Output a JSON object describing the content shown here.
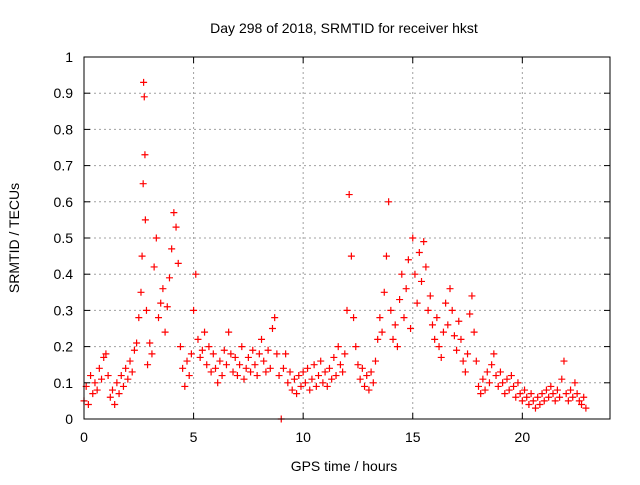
{
  "chart_data": {
    "type": "scatter",
    "title": "Day 298 of 2018, SRMTID for receiver hkst",
    "xlabel": "GPS time / hours",
    "ylabel": "SRMTID / TECUs",
    "xlim": [
      0,
      24
    ],
    "ylim": [
      0,
      1
    ],
    "xticks": [
      0,
      5,
      10,
      15,
      20
    ],
    "yticks": [
      0,
      0.1,
      0.2,
      0.3,
      0.4,
      0.5,
      0.6,
      0.7,
      0.8,
      0.9,
      1
    ],
    "xtick_labels": [
      "0",
      "5",
      "10",
      "15",
      "20"
    ],
    "ytick_labels": [
      "0",
      "0.1",
      "0.2",
      "0.3",
      "0.4",
      "0.5",
      "0.6",
      "0.7",
      "0.8",
      "0.9",
      "1"
    ],
    "grid": true,
    "marker": "+",
    "color": "#ff0000",
    "series": [
      {
        "name": "SRMTID",
        "points": [
          [
            0.0,
            0.05
          ],
          [
            0.1,
            0.09
          ],
          [
            0.2,
            0.04
          ],
          [
            0.3,
            0.12
          ],
          [
            0.4,
            0.07
          ],
          [
            0.5,
            0.1
          ],
          [
            0.6,
            0.08
          ],
          [
            0.7,
            0.14
          ],
          [
            0.8,
            0.11
          ],
          [
            0.9,
            0.17
          ],
          [
            1.0,
            0.18
          ],
          [
            1.1,
            0.12
          ],
          [
            1.2,
            0.06
          ],
          [
            1.3,
            0.08
          ],
          [
            1.4,
            0.04
          ],
          [
            1.5,
            0.1
          ],
          [
            1.6,
            0.07
          ],
          [
            1.7,
            0.12
          ],
          [
            1.8,
            0.09
          ],
          [
            1.9,
            0.14
          ],
          [
            2.0,
            0.11
          ],
          [
            2.1,
            0.16
          ],
          [
            2.2,
            0.13
          ],
          [
            2.3,
            0.19
          ],
          [
            2.4,
            0.21
          ],
          [
            2.5,
            0.28
          ],
          [
            2.6,
            0.35
          ],
          [
            2.65,
            0.45
          ],
          [
            2.7,
            0.65
          ],
          [
            2.72,
            0.93
          ],
          [
            2.75,
            0.89
          ],
          [
            2.78,
            0.73
          ],
          [
            2.8,
            0.55
          ],
          [
            2.85,
            0.3
          ],
          [
            2.9,
            0.15
          ],
          [
            3.0,
            0.21
          ],
          [
            3.1,
            0.18
          ],
          [
            3.2,
            0.42
          ],
          [
            3.3,
            0.5
          ],
          [
            3.4,
            0.28
          ],
          [
            3.5,
            0.32
          ],
          [
            3.6,
            0.36
          ],
          [
            3.7,
            0.24
          ],
          [
            3.8,
            0.31
          ],
          [
            3.9,
            0.39
          ],
          [
            4.0,
            0.47
          ],
          [
            4.1,
            0.57
          ],
          [
            4.2,
            0.53
          ],
          [
            4.3,
            0.43
          ],
          [
            4.4,
            0.2
          ],
          [
            4.5,
            0.14
          ],
          [
            4.6,
            0.09
          ],
          [
            4.7,
            0.16
          ],
          [
            4.8,
            0.12
          ],
          [
            4.9,
            0.18
          ],
          [
            5.0,
            0.3
          ],
          [
            5.1,
            0.4
          ],
          [
            5.2,
            0.22
          ],
          [
            5.3,
            0.17
          ],
          [
            5.4,
            0.19
          ],
          [
            5.5,
            0.24
          ],
          [
            5.6,
            0.15
          ],
          [
            5.7,
            0.2
          ],
          [
            5.8,
            0.13
          ],
          [
            5.9,
            0.18
          ],
          [
            6.0,
            0.14
          ],
          [
            6.1,
            0.1
          ],
          [
            6.2,
            0.16
          ],
          [
            6.3,
            0.12
          ],
          [
            6.4,
            0.19
          ],
          [
            6.5,
            0.15
          ],
          [
            6.6,
            0.24
          ],
          [
            6.7,
            0.18
          ],
          [
            6.8,
            0.13
          ],
          [
            6.9,
            0.17
          ],
          [
            7.0,
            0.12
          ],
          [
            7.1,
            0.15
          ],
          [
            7.2,
            0.2
          ],
          [
            7.3,
            0.11
          ],
          [
            7.4,
            0.14
          ],
          [
            7.5,
            0.17
          ],
          [
            7.6,
            0.13
          ],
          [
            7.7,
            0.19
          ],
          [
            7.8,
            0.15
          ],
          [
            7.9,
            0.12
          ],
          [
            8.0,
            0.18
          ],
          [
            8.1,
            0.22
          ],
          [
            8.2,
            0.16
          ],
          [
            8.3,
            0.13
          ],
          [
            8.4,
            0.19
          ],
          [
            8.5,
            0.14
          ],
          [
            8.6,
            0.25
          ],
          [
            8.7,
            0.28
          ],
          [
            8.8,
            0.18
          ],
          [
            8.9,
            0.12
          ],
          [
            9.0,
            0.0
          ],
          [
            9.1,
            0.14
          ],
          [
            9.2,
            0.18
          ],
          [
            9.3,
            0.1
          ],
          [
            9.4,
            0.13
          ],
          [
            9.5,
            0.08
          ],
          [
            9.6,
            0.11
          ],
          [
            9.7,
            0.07
          ],
          [
            9.8,
            0.12
          ],
          [
            9.9,
            0.09
          ],
          [
            10.0,
            0.13
          ],
          [
            10.1,
            0.1
          ],
          [
            10.2,
            0.14
          ],
          [
            10.3,
            0.08
          ],
          [
            10.4,
            0.11
          ],
          [
            10.5,
            0.15
          ],
          [
            10.6,
            0.09
          ],
          [
            10.7,
            0.12
          ],
          [
            10.8,
            0.16
          ],
          [
            10.9,
            0.1
          ],
          [
            11.0,
            0.13
          ],
          [
            11.1,
            0.09
          ],
          [
            11.2,
            0.14
          ],
          [
            11.3,
            0.11
          ],
          [
            11.4,
            0.17
          ],
          [
            11.5,
            0.12
          ],
          [
            11.6,
            0.2
          ],
          [
            11.7,
            0.15
          ],
          [
            11.8,
            0.13
          ],
          [
            11.9,
            0.18
          ],
          [
            12.0,
            0.3
          ],
          [
            12.1,
            0.62
          ],
          [
            12.2,
            0.45
          ],
          [
            12.3,
            0.28
          ],
          [
            12.4,
            0.2
          ],
          [
            12.5,
            0.15
          ],
          [
            12.6,
            0.11
          ],
          [
            12.7,
            0.14
          ],
          [
            12.8,
            0.09
          ],
          [
            12.9,
            0.12
          ],
          [
            13.0,
            0.08
          ],
          [
            13.1,
            0.13
          ],
          [
            13.2,
            0.1
          ],
          [
            13.3,
            0.16
          ],
          [
            13.4,
            0.22
          ],
          [
            13.5,
            0.28
          ],
          [
            13.6,
            0.24
          ],
          [
            13.7,
            0.35
          ],
          [
            13.8,
            0.45
          ],
          [
            13.9,
            0.6
          ],
          [
            14.0,
            0.3
          ],
          [
            14.1,
            0.22
          ],
          [
            14.2,
            0.26
          ],
          [
            14.3,
            0.2
          ],
          [
            14.4,
            0.33
          ],
          [
            14.5,
            0.4
          ],
          [
            14.6,
            0.28
          ],
          [
            14.7,
            0.36
          ],
          [
            14.8,
            0.44
          ],
          [
            14.9,
            0.25
          ],
          [
            15.0,
            0.5
          ],
          [
            15.1,
            0.4
          ],
          [
            15.2,
            0.32
          ],
          [
            15.3,
            0.46
          ],
          [
            15.4,
            0.38
          ],
          [
            15.5,
            0.49
          ],
          [
            15.6,
            0.42
          ],
          [
            15.7,
            0.3
          ],
          [
            15.8,
            0.34
          ],
          [
            15.9,
            0.26
          ],
          [
            16.0,
            0.22
          ],
          [
            16.1,
            0.28
          ],
          [
            16.2,
            0.2
          ],
          [
            16.3,
            0.17
          ],
          [
            16.4,
            0.24
          ],
          [
            16.5,
            0.32
          ],
          [
            16.6,
            0.26
          ],
          [
            16.7,
            0.36
          ],
          [
            16.8,
            0.3
          ],
          [
            16.9,
            0.23
          ],
          [
            17.0,
            0.19
          ],
          [
            17.1,
            0.27
          ],
          [
            17.2,
            0.22
          ],
          [
            17.3,
            0.16
          ],
          [
            17.4,
            0.13
          ],
          [
            17.5,
            0.18
          ],
          [
            17.6,
            0.29
          ],
          [
            17.7,
            0.34
          ],
          [
            17.8,
            0.24
          ],
          [
            17.9,
            0.16
          ],
          [
            18.0,
            0.09
          ],
          [
            18.1,
            0.07
          ],
          [
            18.2,
            0.11
          ],
          [
            18.3,
            0.08
          ],
          [
            18.4,
            0.13
          ],
          [
            18.5,
            0.1
          ],
          [
            18.6,
            0.15
          ],
          [
            18.7,
            0.18
          ],
          [
            18.8,
            0.12
          ],
          [
            18.9,
            0.09
          ],
          [
            19.0,
            0.13
          ],
          [
            19.1,
            0.1
          ],
          [
            19.2,
            0.07
          ],
          [
            19.3,
            0.11
          ],
          [
            19.4,
            0.08
          ],
          [
            19.5,
            0.12
          ],
          [
            19.6,
            0.09
          ],
          [
            19.7,
            0.06
          ],
          [
            19.8,
            0.1
          ],
          [
            19.9,
            0.07
          ],
          [
            20.0,
            0.05
          ],
          [
            20.1,
            0.08
          ],
          [
            20.2,
            0.06
          ],
          [
            20.3,
            0.04
          ],
          [
            20.4,
            0.07
          ],
          [
            20.5,
            0.05
          ],
          [
            20.6,
            0.03
          ],
          [
            20.7,
            0.06
          ],
          [
            20.8,
            0.04
          ],
          [
            20.9,
            0.07
          ],
          [
            21.0,
            0.05
          ],
          [
            21.1,
            0.08
          ],
          [
            21.2,
            0.06
          ],
          [
            21.3,
            0.09
          ],
          [
            21.4,
            0.07
          ],
          [
            21.5,
            0.05
          ],
          [
            21.6,
            0.08
          ],
          [
            21.7,
            0.06
          ],
          [
            21.8,
            0.11
          ],
          [
            21.9,
            0.16
          ],
          [
            22.0,
            0.07
          ],
          [
            22.1,
            0.05
          ],
          [
            22.2,
            0.08
          ],
          [
            22.3,
            0.06
          ],
          [
            22.4,
            0.1
          ],
          [
            22.5,
            0.07
          ],
          [
            22.6,
            0.05
          ],
          [
            22.7,
            0.04
          ],
          [
            22.8,
            0.06
          ],
          [
            22.9,
            0.03
          ]
        ]
      }
    ]
  }
}
